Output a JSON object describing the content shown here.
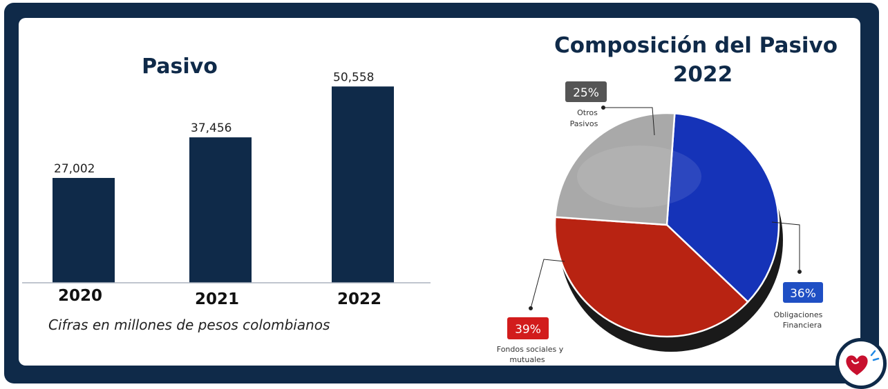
{
  "chart_data": [
    {
      "type": "bar",
      "title": "Pasivo",
      "categories": [
        "2020",
        "2021",
        "2022"
      ],
      "values": [
        27002,
        37456,
        50558
      ],
      "value_labels": [
        "27,002",
        "37,456",
        "50,558"
      ],
      "ylim": [
        0,
        54000
      ],
      "xlabel": "",
      "ylabel": "",
      "note": "Cifras en millones de pesos colombianos",
      "bar_color": "#0f2a49"
    },
    {
      "type": "pie",
      "title_lines": [
        "Composición del Pasivo",
        "2022"
      ],
      "slices": [
        {
          "label_lines": [
            "Obligaciones",
            "Financiera"
          ],
          "value": 36,
          "pct_label": "36%",
          "color": "#1533b8",
          "badge_color": "#1f4fc4"
        },
        {
          "label_lines": [
            "Fondos sociales y",
            "mutuales"
          ],
          "value": 39,
          "pct_label": "39%",
          "color": "#b82312",
          "badge_color": "#d21c1c"
        },
        {
          "label_lines": [
            "Otros",
            "Pasivos"
          ],
          "value": 25,
          "pct_label": "25%",
          "color": "#a9a9a9",
          "badge_color": "#555555"
        }
      ]
    }
  ],
  "logo": {
    "name": "heart-logo",
    "heart_color": "#c8102e",
    "accent_color": "#1e88e5"
  }
}
